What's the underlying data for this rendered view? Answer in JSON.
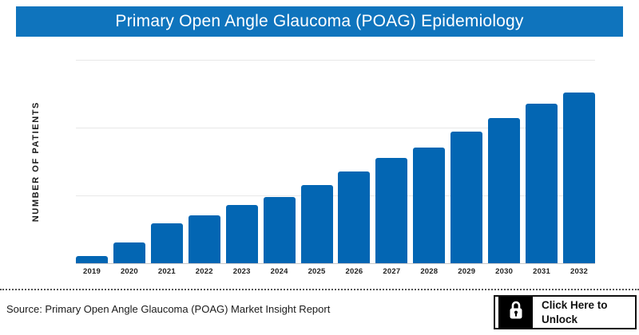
{
  "header": {
    "title": "Primary Open Angle Glaucoma (POAG) Epidemiology",
    "bg_color": "#0F74BD",
    "text_color": "#FFFFFF"
  },
  "chart_data": {
    "type": "bar",
    "title": "Primary Open Angle Glaucoma (POAG) Epidemiology",
    "categories": [
      "2019",
      "2020",
      "2021",
      "2022",
      "2023",
      "2024",
      "2025",
      "2026",
      "2027",
      "2028",
      "2029",
      "2030",
      "2031",
      "2032"
    ],
    "values": [
      4.2,
      12.1,
      23.4,
      28.0,
      34.1,
      38.8,
      45.8,
      53.7,
      61.7,
      68.0,
      77.1,
      85.0,
      93.5,
      100.0
    ],
    "values_unit": "relative bar height, % of tallest bar (y-axis tick values not shown in image)",
    "xlabel": "",
    "ylabel": "NUMBER OF PATIENTS",
    "y_tick_labels_visible": false,
    "grid": "3 horizontal gridlines, unlabeled",
    "legend": "none",
    "bar_color": "#0366B3"
  },
  "footer": {
    "source_text": "Source: Primary Open Angle Glaucoma (POAG) Market Insight Report",
    "unlock_button": {
      "label_line1": "Click Here to",
      "label_line2": "Unlock",
      "icon": "lock-icon"
    }
  }
}
